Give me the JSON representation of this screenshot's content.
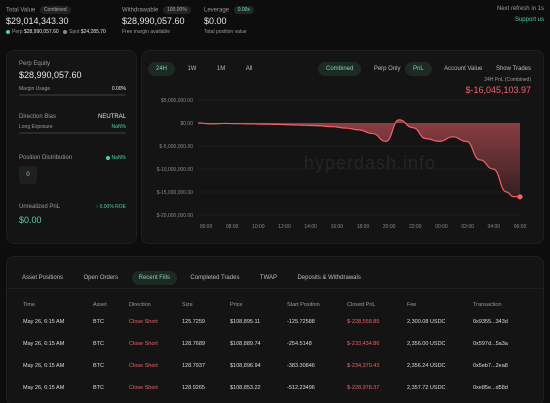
{
  "header": {
    "total_value_label": "Total Value",
    "total_value_badge": "Combined",
    "total_value": "$29,014,343.30",
    "perp_label": "Perp",
    "perp_value": "$28,990,057.60",
    "spot_label": "Spot",
    "spot_value": "$24,285.70",
    "withdrawable_label": "Withdrawable",
    "withdrawable_badge": "100.00%",
    "withdrawable_value": "$28,990,057.60",
    "withdrawable_sub": "Free margin available",
    "leverage_label": "Leverage",
    "leverage_badge": "0.00x",
    "leverage_value": "$0.00",
    "leverage_sub": "Total position value",
    "refresh_text": "Next refresh in 1s",
    "support_link": "Support us"
  },
  "left_panel": {
    "perp_equity_label": "Perp Equity",
    "perp_equity_value": "$28,990,057.60",
    "margin_usage_label": "Margin Usage",
    "margin_usage_value": "0.00%",
    "direction_bias_label": "Direction Bias",
    "direction_bias_value": "NEUTRAL",
    "long_exposure_label": "Long Exposure",
    "long_exposure_value": "NaN%",
    "position_distribution_label": "Position Distribution",
    "position_distribution_value": "NaN%",
    "distribution_count": "0",
    "unrealized_pnl_label": "Unrealized PnL",
    "unrealized_pnl_roe": "0.00% ROE",
    "unrealized_pnl_value": "$0.00"
  },
  "chart_controls": {
    "ranges": [
      "24H",
      "1W",
      "1M",
      "All"
    ],
    "active_range": "24H",
    "modes": [
      "Combined",
      "Perp Only"
    ],
    "active_mode": "Combined",
    "views": [
      "PnL",
      "Account Value"
    ],
    "active_view": "PnL",
    "show_trades": "Show Trades"
  },
  "chart_summary": {
    "label": "24H PnL (Combined)",
    "value": "$-16,045,103.97"
  },
  "watermark": "hyperdash.info",
  "colors": {
    "accent_green": "#4fd1a5",
    "loss_red": "#f0606a",
    "background": "#0d0d0d"
  },
  "chart_data": {
    "type": "area",
    "title": "24H PnL (Combined)",
    "xlabel": "",
    "ylabel": "",
    "x_ticks": [
      "06:00",
      "08:00",
      "10:00",
      "12:00",
      "14:00",
      "16:00",
      "18:00",
      "20:00",
      "22:00",
      "00:00",
      "02:00",
      "04:00",
      "06:00"
    ],
    "y_ticks": [
      "$5,000,000.00",
      "$0.00",
      "$-5,000,000.00",
      "$-10,000,000.00",
      "$-15,000,000.00",
      "$-20,000,000.00"
    ],
    "ylim": [
      -20000000,
      5000000
    ],
    "xlim": [
      0,
      24
    ],
    "grid": true,
    "series": [
      {
        "x": [
          0,
          1,
          2,
          3,
          4,
          5,
          6,
          7,
          8,
          9,
          10,
          11,
          12,
          13,
          14,
          15,
          16,
          17,
          18,
          19,
          20,
          21,
          22,
          23,
          23.5,
          24
        ],
        "y": [
          0,
          -200000,
          -100000,
          -150000,
          -200000,
          -250000,
          -300000,
          -400000,
          -500000,
          -600000,
          -800000,
          -1100000,
          -1500000,
          -2300000,
          -4000000,
          700000,
          -1000000,
          -3400000,
          -4000000,
          -3000000,
          -4000000,
          -8000000,
          -10000000,
          -15000000,
          -16000000,
          -16045103.97
        ]
      }
    ]
  },
  "table": {
    "tabs": [
      "Asset Positions",
      "Open Orders",
      "Recent Fills",
      "Completed Trades",
      "TWAP",
      "Deposits & Withdrawals"
    ],
    "active_tab": "Recent Fills",
    "columns": [
      "Time",
      "Asset",
      "Direction",
      "Size",
      "Price",
      "Start Position",
      "Closed PnL",
      "Fee",
      "Transaction"
    ],
    "rows": [
      [
        "May 26, 6:15 AM",
        "BTC",
        "Close Short",
        "125.7259",
        "$108,895.11",
        "-125.72588",
        "$-228,558.85",
        "2,300.08 USDC",
        "0x9355...343d"
      ],
      [
        "May 26, 6:15 AM",
        "BTC",
        "Close Short",
        "128.7689",
        "$108,889.74",
        "-254.5148",
        "$-233,434.86",
        "2,356.00 USDC",
        "0x597d...5a3a"
      ],
      [
        "May 26, 6:15 AM",
        "BTC",
        "Close Short",
        "128.7937",
        "$108,896.94",
        "-383.30846",
        "$-234,370.43",
        "2,356.24 USDC",
        "0x5eb7...2ea8"
      ],
      [
        "May 26, 6:15 AM",
        "BTC",
        "Close Short",
        "128.9265",
        "$108,853.22",
        "-512.23496",
        "$-228,978.37",
        "2,357.72 USDC",
        "0xe85e...d58d"
      ]
    ]
  }
}
